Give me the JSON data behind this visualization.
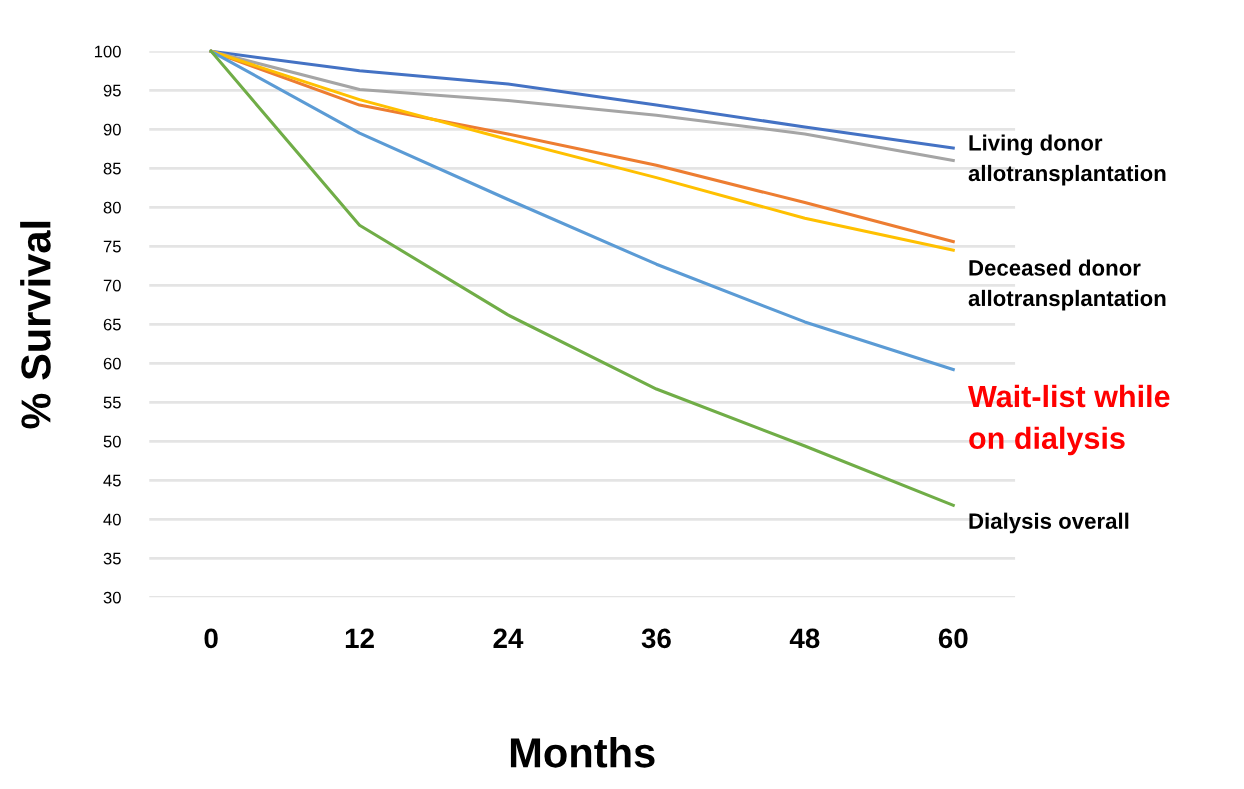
{
  "chart_data": {
    "type": "line",
    "xlabel": "Months",
    "ylabel": "% Survival",
    "x": [
      0,
      12,
      24,
      36,
      48,
      60
    ],
    "series": [
      {
        "color": "#4472c4",
        "values": [
          100,
          97.5,
          95.8,
          93.1,
          90.3,
          87.6
        ]
      },
      {
        "color": "#a5a5a5",
        "values": [
          100,
          95.1,
          93.7,
          91.8,
          89.4,
          86
        ]
      },
      {
        "color": "#ed7d31",
        "values": [
          100,
          93.1,
          89.4,
          85.4,
          80.6,
          75.6
        ]
      },
      {
        "color": "#ffc000",
        "values": [
          100,
          93.8,
          88.7,
          83.8,
          78.6,
          74.5
        ]
      },
      {
        "color": "#5b9bd5",
        "values": [
          100,
          89.5,
          81,
          72.7,
          65.3,
          59.2
        ]
      },
      {
        "color": "#70ad47",
        "values": [
          100,
          77.7,
          66.2,
          56.7,
          49.4,
          41.8
        ]
      }
    ],
    "xlim": [
      -5,
      65
    ],
    "xticks": [
      0,
      12,
      24,
      36,
      48,
      60
    ],
    "ylim": [
      30,
      100
    ],
    "yticks": [
      30,
      35,
      40,
      45,
      50,
      55,
      60,
      65,
      70,
      75,
      80,
      85,
      90,
      95,
      100
    ],
    "grid": "y",
    "marker": "none",
    "line_style": "solid",
    "annotations": [
      "Living donor\nallotransplantation",
      "Deceased donor\nallotransplantation",
      "Wait-list while\non dialysis",
      "Dialysis overall"
    ]
  }
}
